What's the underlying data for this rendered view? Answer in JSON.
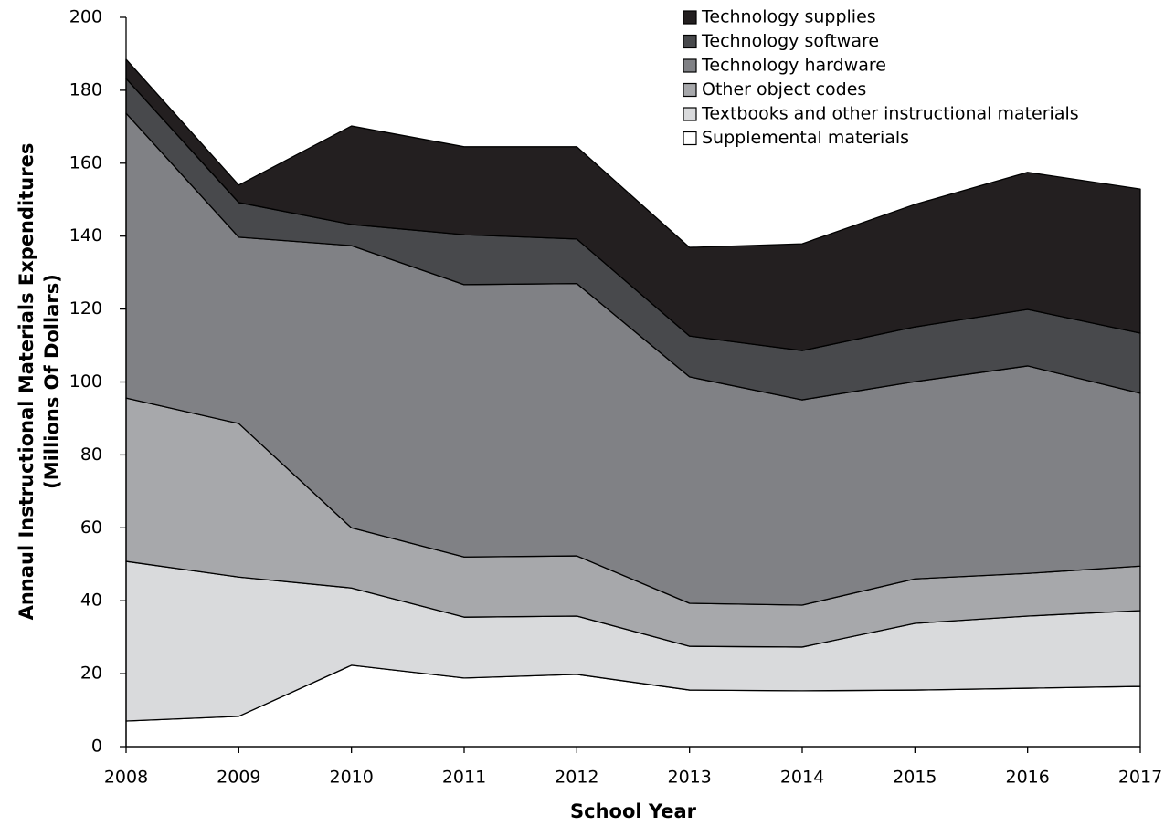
{
  "chart_data": {
    "type": "stacked_area",
    "xlabel": "School Year",
    "ylabel": [
      "Annaul Instructional Materials Expenditures",
      "(Millions Of Dollars)"
    ],
    "x": [
      2008,
      2009,
      2010,
      2011,
      2012,
      2013,
      2014,
      2015,
      2016,
      2017
    ],
    "xlim": [
      2008,
      2017
    ],
    "xticks": [
      2008,
      2009,
      2010,
      2011,
      2012,
      2013,
      2014,
      2015,
      2016,
      2017
    ],
    "ylim": [
      0,
      200
    ],
    "yticks": [
      0,
      20,
      40,
      60,
      80,
      100,
      120,
      140,
      160,
      180,
      200
    ],
    "legend": "top-right",
    "series": [
      {
        "name": "Supplemental materials",
        "color": "#ffffff",
        "values": [
          7,
          8.3,
          22.3,
          18.8,
          19.8,
          15.5,
          15.3,
          15.5,
          16,
          16.5
        ]
      },
      {
        "name": "Textbooks and other instructional materials",
        "color": "#d9dadc",
        "values": [
          43.8,
          38.2,
          21.2,
          16.7,
          16,
          12,
          12,
          18.3,
          19.8,
          20.8
        ]
      },
      {
        "name": "Other object codes",
        "color": "#a7a8ab",
        "values": [
          44.8,
          42.1,
          16.5,
          16.5,
          16.5,
          11.8,
          11.5,
          12.2,
          11.7,
          12.2
        ]
      },
      {
        "name": "Technology hardware",
        "color": "#808185",
        "values": [
          78.1,
          51.1,
          77.4,
          74.7,
          74.7,
          62.1,
          56.3,
          54.1,
          56.9,
          47.4
        ]
      },
      {
        "name": "Technology software",
        "color": "#48494c",
        "values": [
          9.5,
          9.5,
          5.8,
          13.7,
          12.2,
          11.2,
          13.5,
          15,
          15.5,
          16.5
        ]
      },
      {
        "name": "Technology supplies",
        "color": "#231f20",
        "values": [
          5.3,
          4.8,
          27,
          24.1,
          25.3,
          24.3,
          29.3,
          33.6,
          37.6,
          39.5
        ]
      }
    ]
  }
}
